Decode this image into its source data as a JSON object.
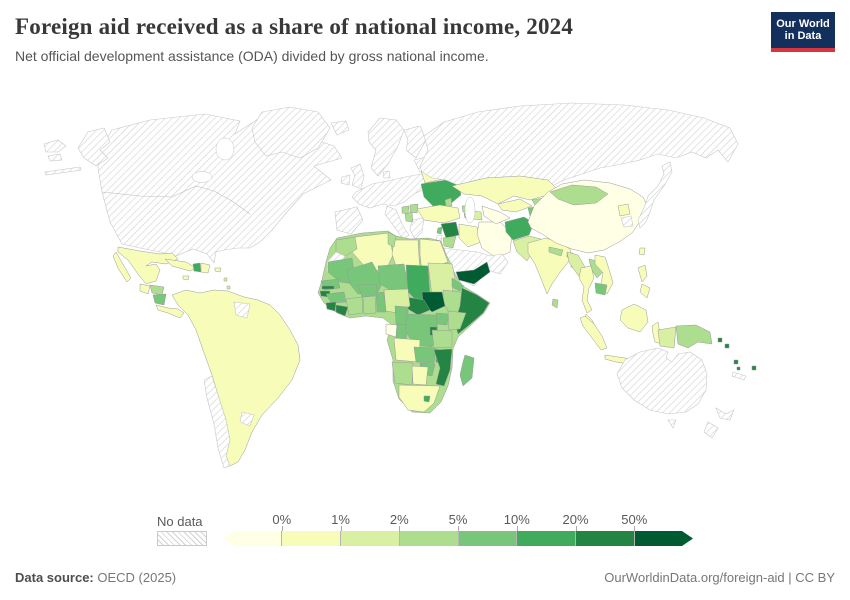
{
  "header": {
    "title": "Foreign aid received as a share of national income, 2024",
    "subtitle": "Net official development assistance (ODA) divided by gross national income.",
    "logo_line1": "Our World",
    "logo_line2": "in Data",
    "logo_bg": "#12305b",
    "logo_accent": "#d8353f"
  },
  "legend": {
    "no_data_label": "No data",
    "tick_labels": [
      "0%",
      "1%",
      "2%",
      "5%",
      "10%",
      "20%",
      "50%"
    ],
    "bucket_colors": [
      "#ffffe5",
      "#f7fcb9",
      "#d9f0a3",
      "#addd8e",
      "#78c679",
      "#41ab5d",
      "#238443",
      "#005a32"
    ]
  },
  "chart_data": {
    "type": "choropleth",
    "title": "Foreign aid received as a share of national income, 2024",
    "unit": "%",
    "scale_thresholds": [
      "0%",
      "1%",
      "2%",
      "5%",
      "10%",
      "20%",
      "50%"
    ],
    "scale_colors": [
      "#ffffe5",
      "#f7fcb9",
      "#d9f0a3",
      "#addd8e",
      "#78c679",
      "#41ab5d",
      "#238443",
      "#005a32"
    ],
    "no_data_label": "No data",
    "no_data_style": "hatched"
  },
  "map": {
    "regions": {
      "canada-usa": "nodata",
      "alaska": "nodata",
      "aleutians": "nodata",
      "russia-wrap-a": "nodata",
      "russia-wrap-b": "nodata",
      "greenland": "nodata",
      "iceland": "nodata",
      "scandinavia": "nodata",
      "finland": "nodata",
      "uk": "nodata",
      "ireland": "nodata",
      "west-europe": "nodata",
      "iberia": "nodata",
      "italy": "nodata",
      "greece": "nodata",
      "baltics": "nodata",
      "russia": "nodata",
      "japan": "nodata",
      "south-korea": "nodata",
      "saudi-peninsula": "nodata",
      "israel": "nodata",
      "western-sahara": "nodata",
      "suriname-guiana": "nodata",
      "chile": "nodata",
      "uruguay": "nodata",
      "australia": "nodata",
      "tasmania": "nodata",
      "new-zealand-north": "nodata",
      "new-zealand-south": "nodata",
      "new-caledonia": "nodata",
      "denmark": "nodata",
      "china": 0,
      "iran": 0,
      "turkmenistan": 0,
      "gabon": 0,
      "mexico": 1,
      "baja": 1,
      "guatemala": 1,
      "costa-rica-panama": 1,
      "cuba": 1,
      "jamaica": 1,
      "dominican-republic": 1,
      "puerto-rico": 1,
      "south-america": 1,
      "algeria": 1,
      "libya": 1,
      "egypt": 1,
      "angola": 1,
      "botswana": 1,
      "south-africa": 1,
      "turkey": 1,
      "iraq": 1,
      "kazakhstan": 1,
      "uzbekistan": 1,
      "belarus": 1,
      "north-korea": 1,
      "taiwan": 1,
      "thailand": 1,
      "vietnam": 1,
      "malaysia-peninsula": 1,
      "borneo": 1,
      "sumatra": 1,
      "java": 1,
      "sulawesi": 1,
      "philippines-north": 1,
      "philippines-south": 1,
      "nigeria": 2,
      "sudan": 2,
      "pakistan": 2,
      "bangladesh": 2,
      "myanmar": 2,
      "azerbaijan": 2,
      "indonesia-papua": 2,
      "antilles": 2,
      "morocco": 3,
      "tunisia": 3,
      "honduras": 3,
      "mongolia": 3,
      "kyrgyzstan": 3,
      "nepal": 3,
      "bhutan": 3,
      "sri-lanka": 3,
      "cote-divoire": 3,
      "ghana": 3,
      "ethiopia": 3,
      "kenya": 3,
      "tanzania": 3,
      "namibia": 3,
      "georgia": 3,
      "jordan": 3,
      "laos": 3,
      "moldova": 3,
      "albania": 3,
      "serbia": 3,
      "bosnia": 3,
      "papua-new-guinea": 3,
      "nicaragua": 4,
      "mauritania": 4,
      "mali": 4,
      "niger": 4,
      "senegal": 4,
      "guinea": 4,
      "burkina-faso": 4,
      "togo-benin": 4,
      "cameroon": 4,
      "congo": 4,
      "drc": 4,
      "uganda": 4,
      "zambia": 4,
      "madagascar": 4,
      "zimbabwe": 4,
      "tajikistan": 4,
      "armenia": 4,
      "cambodia": 4,
      "lebanon": 4,
      "eritrea": 4,
      "haiti": 5,
      "ukraine": 5,
      "afghanistan": 5,
      "chad": 5,
      "malawi": 5,
      "lesotho": 5,
      "syria": 6,
      "somalia": 6,
      "central-african-republic": 6,
      "sierra-leone": 6,
      "liberia": 6,
      "gambia": 6,
      "guinea-bissau": 6,
      "rwanda-burundi": 6,
      "mozambique": 6,
      "solomon-islands": 6,
      "vanuatu": 6,
      "fiji": 6,
      "timor": 6,
      "south-sudan": 7,
      "yemen": 7
    }
  },
  "footer": {
    "source_label": "Data source:",
    "source_value": "OECD (2025)",
    "credit": "OurWorldinData.org/foreign-aid | CC BY"
  }
}
